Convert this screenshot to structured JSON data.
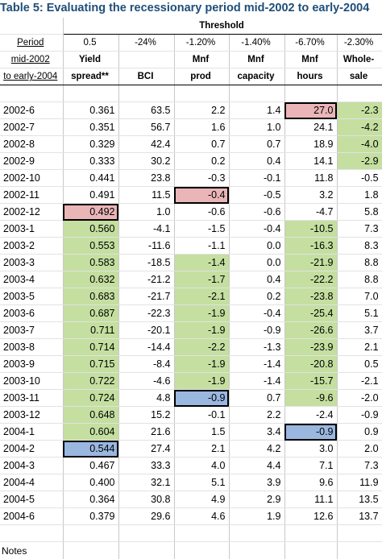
{
  "title": "Table 5:  Evaluating the recessionary period mid-2002 to early-2004",
  "threshold_label": "Threshold",
  "period_header": [
    "Period",
    "mid-2002",
    "to early-2004"
  ],
  "thresholds": [
    "0.5",
    "-24%",
    "-1.20%",
    "-1.40%",
    "-6.70%",
    "-2.30%"
  ],
  "col_headers_1": [
    "Yield",
    "",
    "Mnf",
    "Mnf",
    "Mnf",
    "Whole-"
  ],
  "col_headers_2": [
    "spread**",
    "BCI",
    "prod",
    "capacity",
    "hours",
    "sale"
  ],
  "rows": [
    {
      "p": "2002-6",
      "v": [
        "0.361",
        "63.5",
        "2.2",
        "1.4",
        "27.0",
        "-2.3"
      ],
      "s": [
        "",
        "",
        "",
        "",
        "r box",
        "g"
      ]
    },
    {
      "p": "2002-7",
      "v": [
        "0.351",
        "56.7",
        "1.6",
        "1.0",
        "24.1",
        "-4.2"
      ],
      "s": [
        "",
        "",
        "",
        "",
        "",
        "g"
      ]
    },
    {
      "p": "2002-8",
      "v": [
        "0.329",
        "42.4",
        "0.7",
        "0.7",
        "18.9",
        "-4.0"
      ],
      "s": [
        "",
        "",
        "",
        "",
        "",
        "g"
      ]
    },
    {
      "p": "2002-9",
      "v": [
        "0.333",
        "30.2",
        "0.2",
        "0.4",
        "14.1",
        "-2.9"
      ],
      "s": [
        "",
        "",
        "",
        "",
        "",
        "g"
      ]
    },
    {
      "p": "2002-10",
      "v": [
        "0.441",
        "23.8",
        "-0.3",
        "-0.1",
        "11.8",
        "-0.5"
      ],
      "s": [
        "",
        "",
        "",
        "",
        "",
        ""
      ]
    },
    {
      "p": "2002-11",
      "v": [
        "0.491",
        "11.5",
        "-0.4",
        "-0.5",
        "3.2",
        "1.8"
      ],
      "s": [
        "",
        "",
        "r box",
        "",
        "",
        ""
      ]
    },
    {
      "p": "2002-12",
      "v": [
        "0.492",
        "1.0",
        "-0.6",
        "-0.6",
        "-4.7",
        "5.8"
      ],
      "s": [
        "r box",
        "",
        "",
        "",
        "",
        ""
      ]
    },
    {
      "p": "2003-1",
      "v": [
        "0.560",
        "-4.1",
        "-1.5",
        "-0.4",
        "-10.5",
        "7.3"
      ],
      "s": [
        "g",
        "",
        "",
        "",
        "g",
        ""
      ]
    },
    {
      "p": "2003-2",
      "v": [
        "0.553",
        "-11.6",
        "-1.1",
        "0.0",
        "-16.3",
        "8.3"
      ],
      "s": [
        "g",
        "",
        "",
        "",
        "g",
        ""
      ]
    },
    {
      "p": "2003-3",
      "v": [
        "0.583",
        "-18.5",
        "-1.4",
        "0.0",
        "-21.9",
        "8.8"
      ],
      "s": [
        "g",
        "",
        "g",
        "",
        "g",
        ""
      ]
    },
    {
      "p": "2003-4",
      "v": [
        "0.632",
        "-21.2",
        "-1.7",
        "0.4",
        "-22.2",
        "8.8"
      ],
      "s": [
        "g",
        "",
        "g",
        "",
        "g",
        ""
      ]
    },
    {
      "p": "2003-5",
      "v": [
        "0.683",
        "-21.7",
        "-2.1",
        "0.2",
        "-23.8",
        "7.0"
      ],
      "s": [
        "g",
        "",
        "g",
        "",
        "g",
        ""
      ]
    },
    {
      "p": "2003-6",
      "v": [
        "0.687",
        "-22.3",
        "-1.9",
        "-0.4",
        "-25.4",
        "5.1"
      ],
      "s": [
        "g",
        "",
        "g",
        "",
        "g",
        ""
      ]
    },
    {
      "p": "2003-7",
      "v": [
        "0.711",
        "-20.1",
        "-1.9",
        "-0.9",
        "-26.6",
        "3.7"
      ],
      "s": [
        "g",
        "",
        "g",
        "",
        "g",
        ""
      ]
    },
    {
      "p": "2003-8",
      "v": [
        "0.714",
        "-14.4",
        "-2.2",
        "-1.3",
        "-23.9",
        "2.1"
      ],
      "s": [
        "g",
        "",
        "g",
        "",
        "g",
        ""
      ]
    },
    {
      "p": "2003-9",
      "v": [
        "0.715",
        "-8.4",
        "-1.9",
        "-1.4",
        "-20.8",
        "0.5"
      ],
      "s": [
        "g",
        "",
        "g",
        "",
        "g",
        ""
      ]
    },
    {
      "p": "2003-10",
      "v": [
        "0.722",
        "-4.6",
        "-1.9",
        "-1.4",
        "-15.7",
        "-2.1"
      ],
      "s": [
        "g",
        "",
        "g",
        "",
        "g",
        ""
      ]
    },
    {
      "p": "2003-11",
      "v": [
        "0.724",
        "4.8",
        "-0.9",
        "0.7",
        "-9.6",
        "-2.0"
      ],
      "s": [
        "g",
        "",
        "b box",
        "",
        "g",
        ""
      ]
    },
    {
      "p": "2003-12",
      "v": [
        "0.648",
        "15.2",
        "-0.1",
        "2.2",
        "-2.4",
        "-0.9"
      ],
      "s": [
        "g",
        "",
        "",
        "",
        "",
        ""
      ]
    },
    {
      "p": "2004-1",
      "v": [
        "0.604",
        "21.6",
        "1.5",
        "3.4",
        "-0.9",
        "0.9"
      ],
      "s": [
        "g",
        "",
        "",
        "",
        "b box",
        ""
      ]
    },
    {
      "p": "2004-2",
      "v": [
        "0.544",
        "27.4",
        "2.1",
        "4.2",
        "3.0",
        "2.0"
      ],
      "s": [
        "b box",
        "",
        "",
        "",
        "",
        ""
      ]
    },
    {
      "p": "2004-3",
      "v": [
        "0.467",
        "33.3",
        "4.0",
        "4.4",
        "7.1",
        "7.3"
      ],
      "s": [
        "",
        "",
        "",
        "",
        "",
        ""
      ]
    },
    {
      "p": "2004-4",
      "v": [
        "0.400",
        "32.1",
        "5.1",
        "3.9",
        "9.6",
        "11.9"
      ],
      "s": [
        "",
        "",
        "",
        "",
        "",
        ""
      ]
    },
    {
      "p": "2004-5",
      "v": [
        "0.364",
        "30.8",
        "4.9",
        "2.9",
        "11.1",
        "13.5"
      ],
      "s": [
        "",
        "",
        "",
        "",
        "",
        ""
      ]
    },
    {
      "p": "2004-6",
      "v": [
        "0.379",
        "29.6",
        "4.6",
        "1.9",
        "12.6",
        "13.7"
      ],
      "s": [
        "",
        "",
        "",
        "",
        "",
        ""
      ]
    }
  ],
  "note_label": "Notes"
}
